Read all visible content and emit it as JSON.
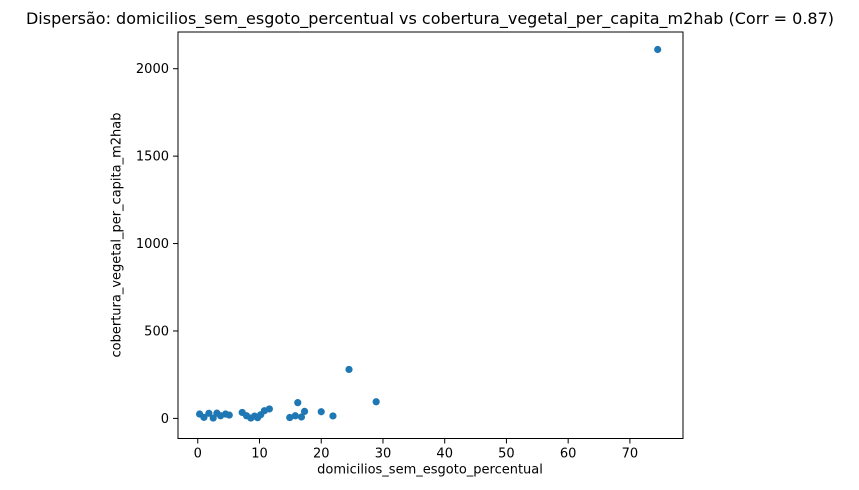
{
  "chart_data": {
    "type": "scatter",
    "title": "Dispersão: domicilios_sem_esgoto_percentual vs cobertura_vegetal_per_capita_m2hab (Corr = 0.87)",
    "xlabel": "domicilios_sem_esgoto_percentual",
    "ylabel": "cobertura_vegetal_per_capita_m2hab",
    "correlation": 0.87,
    "point_color": "#1f77b4",
    "grid": false,
    "legend": "none",
    "xlim": [
      -3.2,
      78.6
    ],
    "ylim": [
      -115,
      2210
    ],
    "xticks": [
      0,
      10,
      20,
      30,
      40,
      50,
      60,
      70
    ],
    "yticks": [
      0,
      500,
      1000,
      1500,
      2000
    ],
    "points": [
      [
        0.3,
        25
      ],
      [
        1.0,
        6
      ],
      [
        1.8,
        29
      ],
      [
        2.5,
        2
      ],
      [
        3.1,
        30
      ],
      [
        3.7,
        15
      ],
      [
        4.5,
        25
      ],
      [
        5.1,
        19
      ],
      [
        7.2,
        34
      ],
      [
        7.9,
        15
      ],
      [
        8.6,
        2
      ],
      [
        9.2,
        13
      ],
      [
        9.7,
        4
      ],
      [
        10.2,
        21
      ],
      [
        10.8,
        44
      ],
      [
        11.6,
        54
      ],
      [
        14.9,
        5
      ],
      [
        15.8,
        15
      ],
      [
        16.2,
        90
      ],
      [
        16.8,
        8
      ],
      [
        17.3,
        40
      ],
      [
        20.0,
        38
      ],
      [
        21.9,
        14
      ],
      [
        24.5,
        280
      ],
      [
        28.9,
        95
      ],
      [
        74.5,
        2110
      ]
    ]
  }
}
